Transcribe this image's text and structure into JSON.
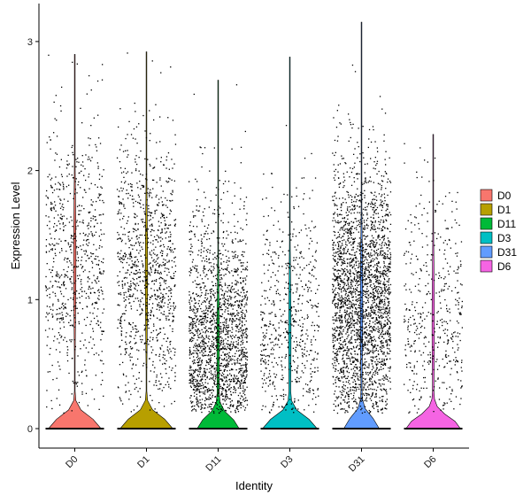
{
  "chart_data": {
    "type": "violin",
    "title": "",
    "xlabel": "Identity",
    "ylabel": "Expression Level",
    "categories": [
      "D0",
      "D1",
      "D11",
      "D3",
      "D31",
      "D6"
    ],
    "ylim": [
      -0.15,
      3.2
    ],
    "yticks": [
      0,
      1,
      2,
      3
    ],
    "grid": false,
    "legend_position": "right",
    "series": [
      {
        "name": "D0",
        "color": "#F8766D",
        "max": 2.9,
        "zero_fraction": 0.9,
        "nonzero_points": 750,
        "nonzero_mean": 1.3
      },
      {
        "name": "D1",
        "color": "#B79F00",
        "max": 2.92,
        "zero_fraction": 0.9,
        "nonzero_points": 1050,
        "nonzero_mean": 1.2
      },
      {
        "name": "D11",
        "color": "#00BA38",
        "max": 2.7,
        "zero_fraction": 0.7,
        "nonzero_points": 1800,
        "nonzero_mean": 0.6
      },
      {
        "name": "D3",
        "color": "#00BFC4",
        "max": 2.88,
        "zero_fraction": 0.92,
        "nonzero_points": 600,
        "nonzero_mean": 0.7
      },
      {
        "name": "D31",
        "color": "#619CFF",
        "max": 3.15,
        "zero_fraction": 0.6,
        "nonzero_points": 2600,
        "nonzero_mean": 0.95
      },
      {
        "name": "D6",
        "color": "#F564E3",
        "max": 2.28,
        "zero_fraction": 0.92,
        "nonzero_points": 450,
        "nonzero_mean": 0.8
      }
    ]
  }
}
